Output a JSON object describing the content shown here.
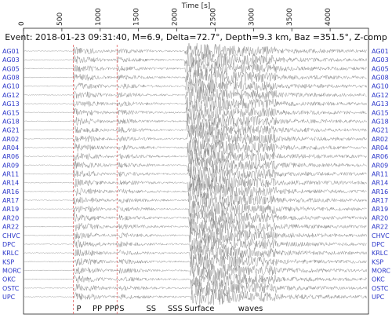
{
  "chart_data": {
    "type": "line",
    "title": "Event: 2018-01-23 09:31:40, M=6.9, Delta=72.7°, Depth=9.3 km, Baz =351.5°, Z-comp",
    "xlabel": "Time [s]",
    "xlim": [
      0,
      4500
    ],
    "xticks": [
      0,
      500,
      1000,
      1500,
      2000,
      2500,
      3000,
      3500,
      4000
    ],
    "xtick_labels": [
      "0",
      "500",
      "1000",
      "1500",
      "2000",
      "2500",
      "3000",
      "3500",
      "4000"
    ],
    "stations": [
      "AG01",
      "AG03",
      "AG05",
      "AG08",
      "AG10",
      "AG12",
      "AG13",
      "AG15",
      "AG18",
      "AG21",
      "AR02",
      "AR04",
      "AR06",
      "AR09",
      "AR11",
      "AR14",
      "AR16",
      "AR17",
      "AR19",
      "AR20",
      "AR22",
      "CHVC",
      "DPC",
      "KRLC",
      "KSP",
      "MORC",
      "OKC",
      "OSTC",
      "UPC"
    ],
    "reference_lines": [
      {
        "label": "P",
        "time": 650
      },
      {
        "label": "S",
        "time": 1220
      }
    ],
    "phase_labels": [
      {
        "text": "P",
        "time": 690
      },
      {
        "text": "PP",
        "time": 900
      },
      {
        "text": "PPP",
        "time": 1060
      },
      {
        "text": "S",
        "time": 1250
      },
      {
        "text": "SS",
        "time": 1600
      },
      {
        "text": "SSS",
        "time": 1880
      },
      {
        "text": "Surface",
        "time": 2100
      },
      {
        "text": "waves",
        "time": 2800
      }
    ],
    "grid": false,
    "legend": "none",
    "colors": {
      "trace": "#8a8a8a",
      "station_label": "#2b36c9",
      "reference_line": "#e06060"
    }
  }
}
